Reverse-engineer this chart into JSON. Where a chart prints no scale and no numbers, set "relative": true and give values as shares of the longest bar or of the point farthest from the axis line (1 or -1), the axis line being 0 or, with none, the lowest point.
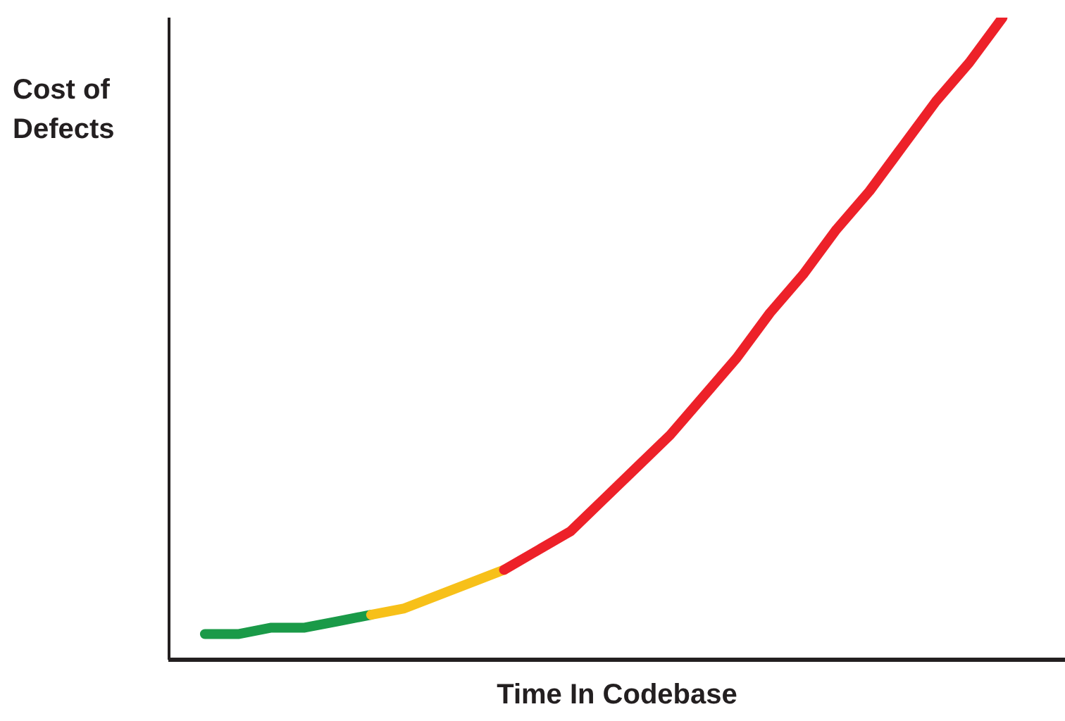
{
  "chart_data": {
    "type": "line",
    "relative": true,
    "xlabel": "Time In Codebase",
    "ylabel": "Cost of\nDefects",
    "tick_labels": false,
    "categories": [
      null,
      null,
      null,
      null,
      null,
      null,
      null,
      null,
      null,
      null,
      null,
      null,
      null,
      null,
      null,
      null,
      null,
      null,
      null,
      null,
      null,
      null,
      null,
      null,
      null
    ],
    "series": [
      {
        "color": "#1a9a48",
        "values": [
          0.04,
          0.04,
          0.05,
          0.05,
          0.06,
          0.07,
          null,
          null,
          null,
          null,
          null,
          null,
          null,
          null,
          null,
          null,
          null,
          null,
          null,
          null,
          null,
          null,
          null,
          null,
          null
        ]
      },
      {
        "color": "#f7c019",
        "values": [
          null,
          null,
          null,
          null,
          null,
          0.07,
          0.08,
          0.1,
          0.12,
          0.14,
          null,
          null,
          null,
          null,
          null,
          null,
          null,
          null,
          null,
          null,
          null,
          null,
          null,
          null,
          null
        ]
      },
      {
        "color": "#ed2129",
        "values": [
          null,
          null,
          null,
          null,
          null,
          null,
          null,
          null,
          null,
          0.14,
          0.17,
          0.2,
          0.25,
          0.3,
          0.35,
          0.41,
          0.47,
          0.54,
          0.6,
          0.67,
          0.73,
          0.8,
          0.87,
          0.93,
          1.0
        ]
      }
    ]
  }
}
